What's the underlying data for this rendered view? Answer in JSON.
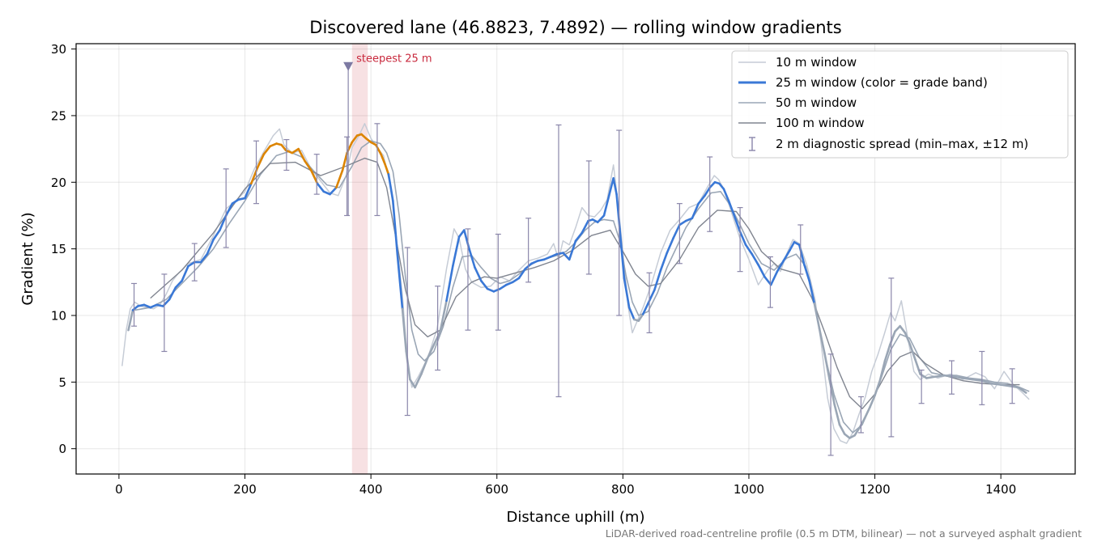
{
  "chart_data": {
    "type": "line",
    "title": "Discovered lane (46.8823, 7.4892) — rolling window gradients",
    "xlabel": "Distance uphill (m)",
    "ylabel": "Gradient (%)",
    "xlim": [
      -68,
      1518
    ],
    "ylim": [
      -1.9,
      30.4
    ],
    "xticks": [
      0,
      200,
      400,
      600,
      800,
      1000,
      1200,
      1400
    ],
    "xtick_labels": [
      "0",
      "200",
      "400",
      "600",
      "800",
      "1000",
      "1200",
      "1400"
    ],
    "yticks": [
      0,
      5,
      10,
      15,
      20,
      25,
      30
    ],
    "ytick_labels": [
      "0",
      "5",
      "10",
      "15",
      "20",
      "25",
      "30"
    ],
    "grid": true,
    "legend_position": "top-right",
    "footnote": "LiDAR-derived road-centreline profile (0.5 m DTM, bilinear) — not a surveyed asphalt gradient",
    "steepest": {
      "label": "steepest 25 m",
      "x_start": 370,
      "x_end": 395,
      "marker_x": 364,
      "marker_top": 28.9,
      "marker_bottom": 17.5,
      "color": "#c8283c"
    },
    "grade_band_colors": {
      "moderate": "#9aa6b5",
      "steep": "#3a78d6",
      "very_steep": "#dc8400"
    },
    "series": [
      {
        "name": "10 m window",
        "color": "#c6ccd6",
        "width": 1.5,
        "x": [
          5,
          12,
          18,
          25,
          35,
          45,
          55,
          65,
          75,
          85,
          95,
          110,
          130,
          150,
          170,
          185,
          200,
          215,
          230,
          245,
          255,
          262,
          275,
          290,
          305,
          320,
          335,
          348,
          360,
          370,
          380,
          390,
          400,
          410,
          420,
          432,
          440,
          450,
          458,
          465,
          475,
          490,
          505,
          520,
          532,
          540,
          550,
          560,
          575,
          590,
          605,
          620,
          635,
          650,
          665,
          680,
          690,
          698,
          705,
          715,
          725,
          735,
          745,
          755,
          765,
          775,
          785,
          792,
          800,
          808,
          815,
          822,
          832,
          845,
          860,
          875,
          890,
          905,
          920,
          935,
          945,
          952,
          960,
          970,
          985,
          1000,
          1015,
          1030,
          1040,
          1050,
          1060,
          1070,
          1080,
          1092,
          1105,
          1115,
          1125,
          1135,
          1145,
          1155,
          1165,
          1175,
          1185,
          1195,
          1205,
          1215,
          1225,
          1232,
          1242,
          1252,
          1262,
          1272,
          1285,
          1300,
          1320,
          1340,
          1360,
          1375,
          1390,
          1405,
          1420,
          1432,
          1445
        ],
        "y": [
          6.2,
          9,
          10.5,
          11,
          10.7,
          10.6,
          10.5,
          10.8,
          11.6,
          12.6,
          13.2,
          13.9,
          14.2,
          16,
          18,
          18.6,
          19.3,
          21,
          22.3,
          23.5,
          24,
          22.8,
          22.2,
          22.4,
          21,
          20.1,
          19.2,
          19,
          20.4,
          22.6,
          23.4,
          24.4,
          23.3,
          22.6,
          22,
          19.5,
          16,
          11.5,
          6.5,
          4.6,
          5.4,
          6.8,
          9,
          13.5,
          16.5,
          15.8,
          13.5,
          12.5,
          12.1,
          12.2,
          12.9,
          12.6,
          13.4,
          14.1,
          14.3,
          14.6,
          15.4,
          14.2,
          15.6,
          15.3,
          16.6,
          18.1,
          17.5,
          17.4,
          17.9,
          18.7,
          21.3,
          18.5,
          14.7,
          10.8,
          8.7,
          9.5,
          10.6,
          12.3,
          14.7,
          16.4,
          17.2,
          18.1,
          18.4,
          19.7,
          20.5,
          20.2,
          19.5,
          18.1,
          15.9,
          14.2,
          12.3,
          13.4,
          13.9,
          13.3,
          14.6,
          15.7,
          15.4,
          13.8,
          11.2,
          7.8,
          3.8,
          1.5,
          0.6,
          0.4,
          1.2,
          2.6,
          3.9,
          5.8,
          7.1,
          8.6,
          10.2,
          9.6,
          11.1,
          8.4,
          5.8,
          5.2,
          5.6,
          5.3,
          5.6,
          5.2,
          5.7,
          5.4,
          4.5,
          5.8,
          4.8,
          4.3,
          3.7
        ]
      },
      {
        "name": "25 m window (color = grade band)",
        "color": "#3a78d6",
        "width": 2.6,
        "x": [
          15,
          22,
          30,
          40,
          50,
          60,
          70,
          80,
          90,
          100,
          110,
          120,
          130,
          140,
          150,
          160,
          170,
          180,
          190,
          200,
          210,
          220,
          230,
          240,
          250,
          258,
          265,
          275,
          285,
          295,
          305,
          315,
          325,
          335,
          345,
          355,
          362,
          370,
          378,
          385,
          392,
          400,
          408,
          416,
          422,
          428,
          435,
          442,
          450,
          456,
          462,
          470,
          480,
          490,
          500,
          510,
          520,
          530,
          540,
          548,
          556,
          565,
          575,
          585,
          595,
          605,
          615,
          625,
          635,
          645,
          655,
          665,
          675,
          685,
          695,
          705,
          715,
          725,
          735,
          745,
          752,
          760,
          770,
          778,
          785,
          790,
          795,
          802,
          810,
          818,
          825,
          832,
          840,
          850,
          860,
          870,
          880,
          890,
          900,
          910,
          920,
          930,
          938,
          946,
          953,
          960,
          968,
          976,
          985,
          995,
          1005,
          1015,
          1025,
          1035,
          1045,
          1055,
          1065,
          1072,
          1080,
          1088,
          1096,
          1104,
          1112,
          1120,
          1128,
          1136,
          1144,
          1152,
          1160,
          1168,
          1176,
          1184,
          1192,
          1200,
          1208,
          1216,
          1224,
          1232,
          1240,
          1248,
          1256,
          1264,
          1272,
          1282,
          1295,
          1310,
          1325,
          1340,
          1355,
          1370,
          1385,
          1400,
          1415,
          1428,
          1440
        ],
        "y": [
          8.9,
          10.4,
          10.7,
          10.8,
          10.6,
          10.8,
          10.7,
          11.2,
          12.1,
          12.6,
          13.7,
          14,
          14,
          14.6,
          15.7,
          16.4,
          17.5,
          18.4,
          18.7,
          18.8,
          19.9,
          21.1,
          22.1,
          22.7,
          22.9,
          22.8,
          22.4,
          22.2,
          22.5,
          21.6,
          20.9,
          19.9,
          19.3,
          19.1,
          19.6,
          20.9,
          22.2,
          23.0,
          23.5,
          23.6,
          23.3,
          23.0,
          22.8,
          22.1,
          21.4,
          20.6,
          18.6,
          14.6,
          10.5,
          7.3,
          5.2,
          4.6,
          5.6,
          6.8,
          7.8,
          8.8,
          11.1,
          13.7,
          15.9,
          16.4,
          15.0,
          13.6,
          12.6,
          12.0,
          11.8,
          12.0,
          12.3,
          12.5,
          12.8,
          13.5,
          13.9,
          14.1,
          14.2,
          14.4,
          14.6,
          14.7,
          14.2,
          15.6,
          16.2,
          17.1,
          17.2,
          17.0,
          17.5,
          19.0,
          20.3,
          19.1,
          16.5,
          12.8,
          10.6,
          9.7,
          9.6,
          10.1,
          10.9,
          11.9,
          13.4,
          14.7,
          15.8,
          16.8,
          17.1,
          17.3,
          18.4,
          19.0,
          19.6,
          20.0,
          19.9,
          19.5,
          18.6,
          17.6,
          16.4,
          15.3,
          14.6,
          13.8,
          12.9,
          12.3,
          13.3,
          14.1,
          14.9,
          15.5,
          15.3,
          13.8,
          12.6,
          10.9,
          9.0,
          7.2,
          5.2,
          3.3,
          1.8,
          1.1,
          0.8,
          1.0,
          1.6,
          2.3,
          3.1,
          4.0,
          5.1,
          6.6,
          7.8,
          8.8,
          9.2,
          8.7,
          7.8,
          6.7,
          5.6,
          5.3,
          5.4,
          5.5,
          5.4,
          5.3,
          5.2,
          5.1,
          4.9,
          4.8,
          4.7,
          4.6,
          4.2
        ]
      },
      {
        "name": "50 m window",
        "color": "#9aa6b5",
        "width": 1.6,
        "x": [
          25,
          50,
          75,
          100,
          125,
          150,
          175,
          200,
          225,
          250,
          270,
          290,
          310,
          330,
          350,
          370,
          385,
          400,
          415,
          425,
          435,
          445,
          455,
          465,
          475,
          485,
          500,
          515,
          530,
          545,
          560,
          575,
          590,
          605,
          620,
          635,
          650,
          665,
          680,
          695,
          710,
          725,
          740,
          755,
          770,
          785,
          795,
          805,
          815,
          825,
          840,
          855,
          870,
          885,
          900,
          920,
          940,
          955,
          970,
          985,
          1000,
          1020,
          1040,
          1060,
          1075,
          1090,
          1105,
          1120,
          1135,
          1150,
          1165,
          1180,
          1195,
          1210,
          1225,
          1240,
          1255,
          1270,
          1290,
          1310,
          1330,
          1350,
          1370,
          1390,
          1410,
          1430,
          1445
        ],
        "y": [
          10.4,
          10.6,
          11.2,
          12.4,
          13.6,
          15.0,
          16.9,
          18.6,
          20.6,
          22.0,
          22.3,
          21.9,
          20.8,
          19.8,
          19.6,
          21.2,
          22.6,
          23.1,
          22.9,
          22.2,
          20.8,
          17.5,
          12.8,
          8.9,
          7.1,
          6.6,
          7.3,
          9.2,
          12.1,
          14.4,
          14.5,
          13.6,
          12.8,
          12.4,
          12.6,
          13.1,
          13.7,
          14.1,
          14.3,
          14.5,
          14.8,
          15.5,
          16.4,
          17.0,
          17.2,
          17.1,
          15.6,
          13.0,
          11.0,
          10.0,
          10.3,
          11.7,
          13.6,
          15.1,
          16.6,
          18.0,
          19.2,
          19.3,
          18.3,
          16.9,
          15.4,
          13.9,
          13.4,
          14.3,
          14.6,
          13.7,
          10.7,
          7.2,
          4.1,
          2.0,
          1.2,
          1.8,
          3.4,
          5.3,
          7.4,
          8.6,
          8.3,
          6.9,
          5.7,
          5.5,
          5.5,
          5.3,
          5.2,
          5.0,
          4.9,
          4.6,
          4.3
        ]
      },
      {
        "name": "100 m window",
        "color": "#808590",
        "width": 1.4,
        "x": [
          50,
          100,
          150,
          200,
          240,
          280,
          320,
          360,
          390,
          410,
          425,
          440,
          455,
          470,
          490,
          510,
          535,
          560,
          580,
          600,
          630,
          660,
          690,
          720,
          750,
          780,
          800,
          820,
          840,
          860,
          890,
          920,
          950,
          980,
          1000,
          1020,
          1050,
          1080,
          1100,
          1120,
          1140,
          1160,
          1180,
          1200,
          1220,
          1240,
          1260,
          1280,
          1310,
          1340,
          1370,
          1400,
          1430
        ],
        "y": [
          11.3,
          13.4,
          16.2,
          19.5,
          21.4,
          21.5,
          20.5,
          21.2,
          21.8,
          21.5,
          19.6,
          15.7,
          11.9,
          9.3,
          8.4,
          8.9,
          11.4,
          12.5,
          12.9,
          12.8,
          13.2,
          13.6,
          14.1,
          14.9,
          16.0,
          16.4,
          14.8,
          13.1,
          12.2,
          12.4,
          14.2,
          16.6,
          17.9,
          17.8,
          16.5,
          14.8,
          13.5,
          13.1,
          11.3,
          8.8,
          6.1,
          3.9,
          3.0,
          4.1,
          5.8,
          6.9,
          7.3,
          6.4,
          5.5,
          5.1,
          4.9,
          4.8,
          4.8
        ]
      }
    ],
    "spread": {
      "name": "2 m diagnostic spread (min–max, ±12 m)",
      "color": "#8a86aa",
      "points": [
        {
          "x": 24,
          "min": 9.2,
          "max": 12.4
        },
        {
          "x": 72,
          "min": 7.3,
          "max": 13.1
        },
        {
          "x": 120,
          "min": 12.6,
          "max": 15.4
        },
        {
          "x": 170,
          "min": 15.1,
          "max": 21.0
        },
        {
          "x": 218,
          "min": 18.4,
          "max": 23.1
        },
        {
          "x": 266,
          "min": 20.9,
          "max": 23.2
        },
        {
          "x": 314,
          "min": 19.1,
          "max": 22.1
        },
        {
          "x": 362,
          "min": 17.5,
          "max": 23.4
        },
        {
          "x": 410,
          "min": 17.5,
          "max": 24.4
        },
        {
          "x": 458,
          "min": 2.5,
          "max": 15.1
        },
        {
          "x": 506,
          "min": 5.9,
          "max": 12.2
        },
        {
          "x": 554,
          "min": 8.9,
          "max": 16.5
        },
        {
          "x": 602,
          "min": 8.9,
          "max": 16.1
        },
        {
          "x": 650,
          "min": 12.5,
          "max": 17.3
        },
        {
          "x": 698,
          "min": 3.9,
          "max": 24.3
        },
        {
          "x": 746,
          "min": 13.1,
          "max": 21.6
        },
        {
          "x": 794,
          "min": 10.0,
          "max": 23.9
        },
        {
          "x": 842,
          "min": 8.7,
          "max": 13.2
        },
        {
          "x": 890,
          "min": 13.9,
          "max": 18.4
        },
        {
          "x": 938,
          "min": 16.3,
          "max": 21.9
        },
        {
          "x": 986,
          "min": 13.3,
          "max": 18.1
        },
        {
          "x": 1034,
          "min": 10.6,
          "max": 14.4
        },
        {
          "x": 1082,
          "min": 13.1,
          "max": 16.8
        },
        {
          "x": 1130,
          "min": -0.5,
          "max": 7.1
        },
        {
          "x": 1178,
          "min": 1.2,
          "max": 3.9
        },
        {
          "x": 1226,
          "min": 0.9,
          "max": 12.8
        },
        {
          "x": 1274,
          "min": 3.4,
          "max": 5.9
        },
        {
          "x": 1322,
          "min": 4.1,
          "max": 6.6
        },
        {
          "x": 1370,
          "min": 3.3,
          "max": 7.3
        },
        {
          "x": 1418,
          "min": 3.4,
          "max": 6.0
        }
      ]
    }
  }
}
